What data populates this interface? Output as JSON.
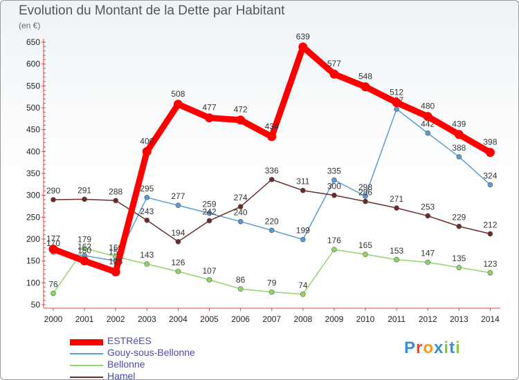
{
  "title": "Evolution du Montant de la Dette par Habitant",
  "subtitle": "(en €)",
  "logo": {
    "text": "Proxiti",
    "colors": [
      "#3a8fd0",
      "#e2462b",
      "#f29c1e",
      "#3a8fd0",
      "#8cc63f",
      "#3a8fd0",
      "#8cc63f"
    ]
  },
  "chart_data": {
    "type": "line",
    "x": [
      "2000",
      "2001",
      "2002",
      "2003",
      "2004",
      "2005",
      "2006",
      "2007",
      "2008",
      "2009",
      "2010",
      "2011",
      "2012",
      "2013",
      "2014"
    ],
    "ylim": [
      50,
      650
    ],
    "yticks": [
      50,
      100,
      150,
      200,
      250,
      300,
      350,
      400,
      450,
      500,
      550,
      600,
      650
    ],
    "grid": false,
    "legend_position": "bottom-left",
    "series": [
      {
        "name": "Gouy-sous-Bellonne",
        "color": "#5b9bd5",
        "values": [
          170,
          162,
          150,
          295,
          277,
          259,
          240,
          220,
          199,
          335,
          298,
          497,
          442,
          388,
          324
        ]
      },
      {
        "name": "Bellonne",
        "color": "#8fd66a",
        "values": [
          76,
          179,
          160,
          143,
          126,
          107,
          86,
          79,
          74,
          176,
          165,
          153,
          147,
          135,
          123
        ]
      },
      {
        "name": "Hamel",
        "color": "#6b2a2a",
        "values": [
          290,
          291,
          288,
          243,
          194,
          242,
          274,
          336,
          311,
          300,
          286,
          271,
          253,
          229,
          212
        ]
      },
      {
        "name": "ESTRéES",
        "color": "#ff0000",
        "values": [
          177,
          150,
          125,
          400,
          508,
          477,
          472,
          434,
          639,
          577,
          548,
          512,
          480,
          439,
          398
        ]
      }
    ],
    "legend_order": [
      "ESTRéES",
      "Gouy-sous-Bellonne",
      "Bellonne",
      "Hamel"
    ]
  }
}
